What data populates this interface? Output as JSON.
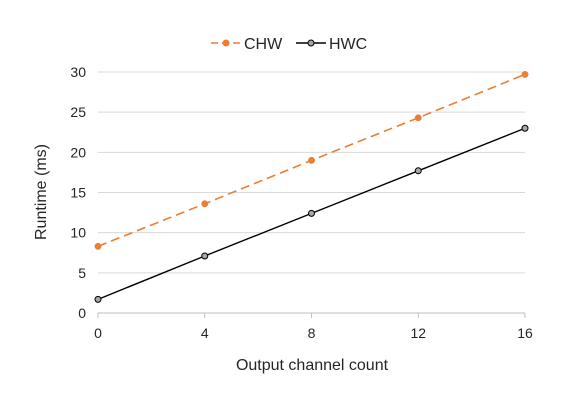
{
  "chart_data": {
    "type": "line",
    "xlabel": "Output channel count",
    "ylabel": "Runtime (ms)",
    "xlim": [
      0,
      16
    ],
    "ylim": [
      0,
      30
    ],
    "xticks": [
      0,
      4,
      8,
      12,
      16
    ],
    "yticks": [
      0,
      5,
      10,
      15,
      20,
      25,
      30
    ],
    "grid": "horizontal",
    "legend_position": "top-center",
    "series": [
      {
        "name": "CHW",
        "color": "#ED7D31",
        "line_style": "dashed",
        "marker": "filled-circle",
        "x": [
          0,
          4,
          8,
          12,
          16
        ],
        "values": [
          8.3,
          13.6,
          19.0,
          24.3,
          29.7
        ]
      },
      {
        "name": "HWC",
        "color": "#000000",
        "line_style": "solid",
        "marker": "hollow-circle",
        "x": [
          0,
          4,
          8,
          12,
          16
        ],
        "values": [
          1.7,
          7.1,
          12.4,
          17.7,
          23.0
        ]
      }
    ]
  }
}
